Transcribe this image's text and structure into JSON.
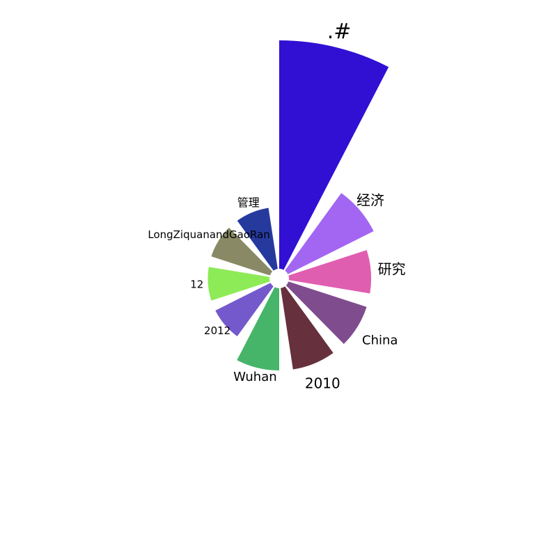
{
  "chart_data": {
    "type": "bar",
    "projection": "polar",
    "categories": [
      ".#",
      "经济",
      "研究",
      "China",
      "2010",
      "Wuhan",
      "2012",
      "12",
      "LongZiquanandGaoRan",
      "管理"
    ],
    "values": [
      100,
      42,
      36,
      36,
      36,
      36,
      27,
      27,
      27,
      27
    ],
    "colors": [
      "#3110d4",
      "#a266f2",
      "#e05eb0",
      "#7f4c8e",
      "#66303d",
      "#47b569",
      "#7459cc",
      "#8deb57",
      "#898966",
      "#263a9e"
    ],
    "direction": "clockwise",
    "start_angle": "top"
  }
}
